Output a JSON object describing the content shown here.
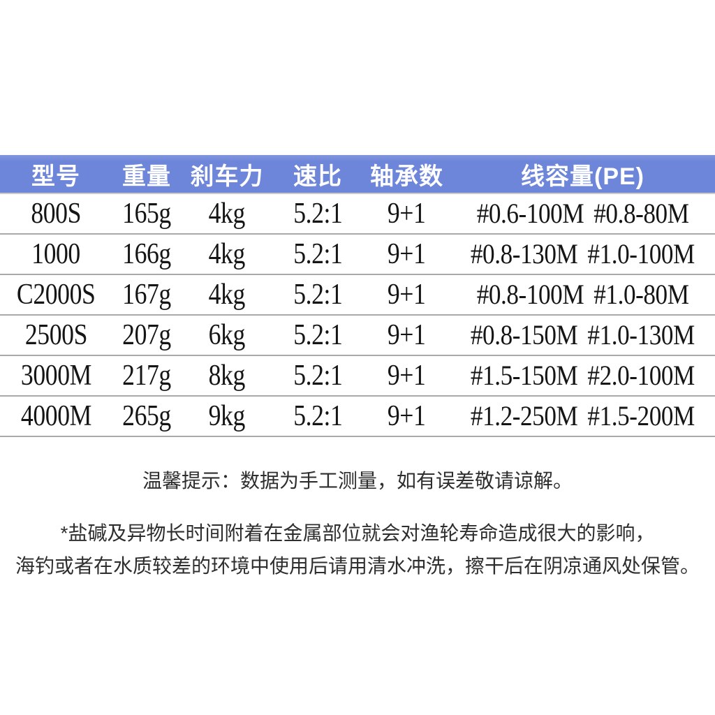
{
  "colors": {
    "header_bg": "#6e86d9",
    "header_bg_light": "#8396de",
    "header_text": "#ffffff",
    "row_divider": "#a9a9a9",
    "data_text": "#151515",
    "note_text": "#2e2e2e",
    "page_bg": "#ffffff"
  },
  "table": {
    "headers": [
      "型号",
      "重量",
      "刹车力",
      "速比",
      "轴承数",
      "线容量(PE)"
    ],
    "rows": [
      {
        "model": "800S",
        "weight": "165g",
        "brake": "4kg",
        "ratio": "5.2:1",
        "bearings": "9+1",
        "capacity": [
          "#0.6-100M",
          "#0.8-80M"
        ]
      },
      {
        "model": "1000",
        "weight": "166g",
        "brake": "4kg",
        "ratio": "5.2:1",
        "bearings": "9+1",
        "capacity": [
          "#0.8-130M",
          "#1.0-100M"
        ]
      },
      {
        "model": "C2000S",
        "weight": "167g",
        "brake": "4kg",
        "ratio": "5.2:1",
        "bearings": "9+1",
        "capacity": [
          "#0.8-100M",
          "#1.0-80M"
        ]
      },
      {
        "model": "2500S",
        "weight": "207g",
        "brake": "6kg",
        "ratio": "5.2:1",
        "bearings": "9+1",
        "capacity": [
          "#0.8-150M",
          "#1.0-130M"
        ]
      },
      {
        "model": "3000M",
        "weight": "217g",
        "brake": "8kg",
        "ratio": "5.2:1",
        "bearings": "9+1",
        "capacity": [
          "#1.5-150M",
          "#2.0-100M"
        ]
      },
      {
        "model": "4000M",
        "weight": "265g",
        "brake": "9kg",
        "ratio": "5.2:1",
        "bearings": "9+1",
        "capacity": [
          "#1.2-250M",
          "#1.5-200M"
        ]
      }
    ]
  },
  "notes": {
    "tip": "温馨提示：数据为手工测量，如有误差敬请谅解。",
    "warning_line1": "*盐碱及异物长时间附着在金属部位就会对渔轮寿命造成很大的影响，",
    "warning_line2": "海钓或者在水质较差的环境中使用后请用清水冲洗，擦干后在阴凉通风处保管。"
  }
}
